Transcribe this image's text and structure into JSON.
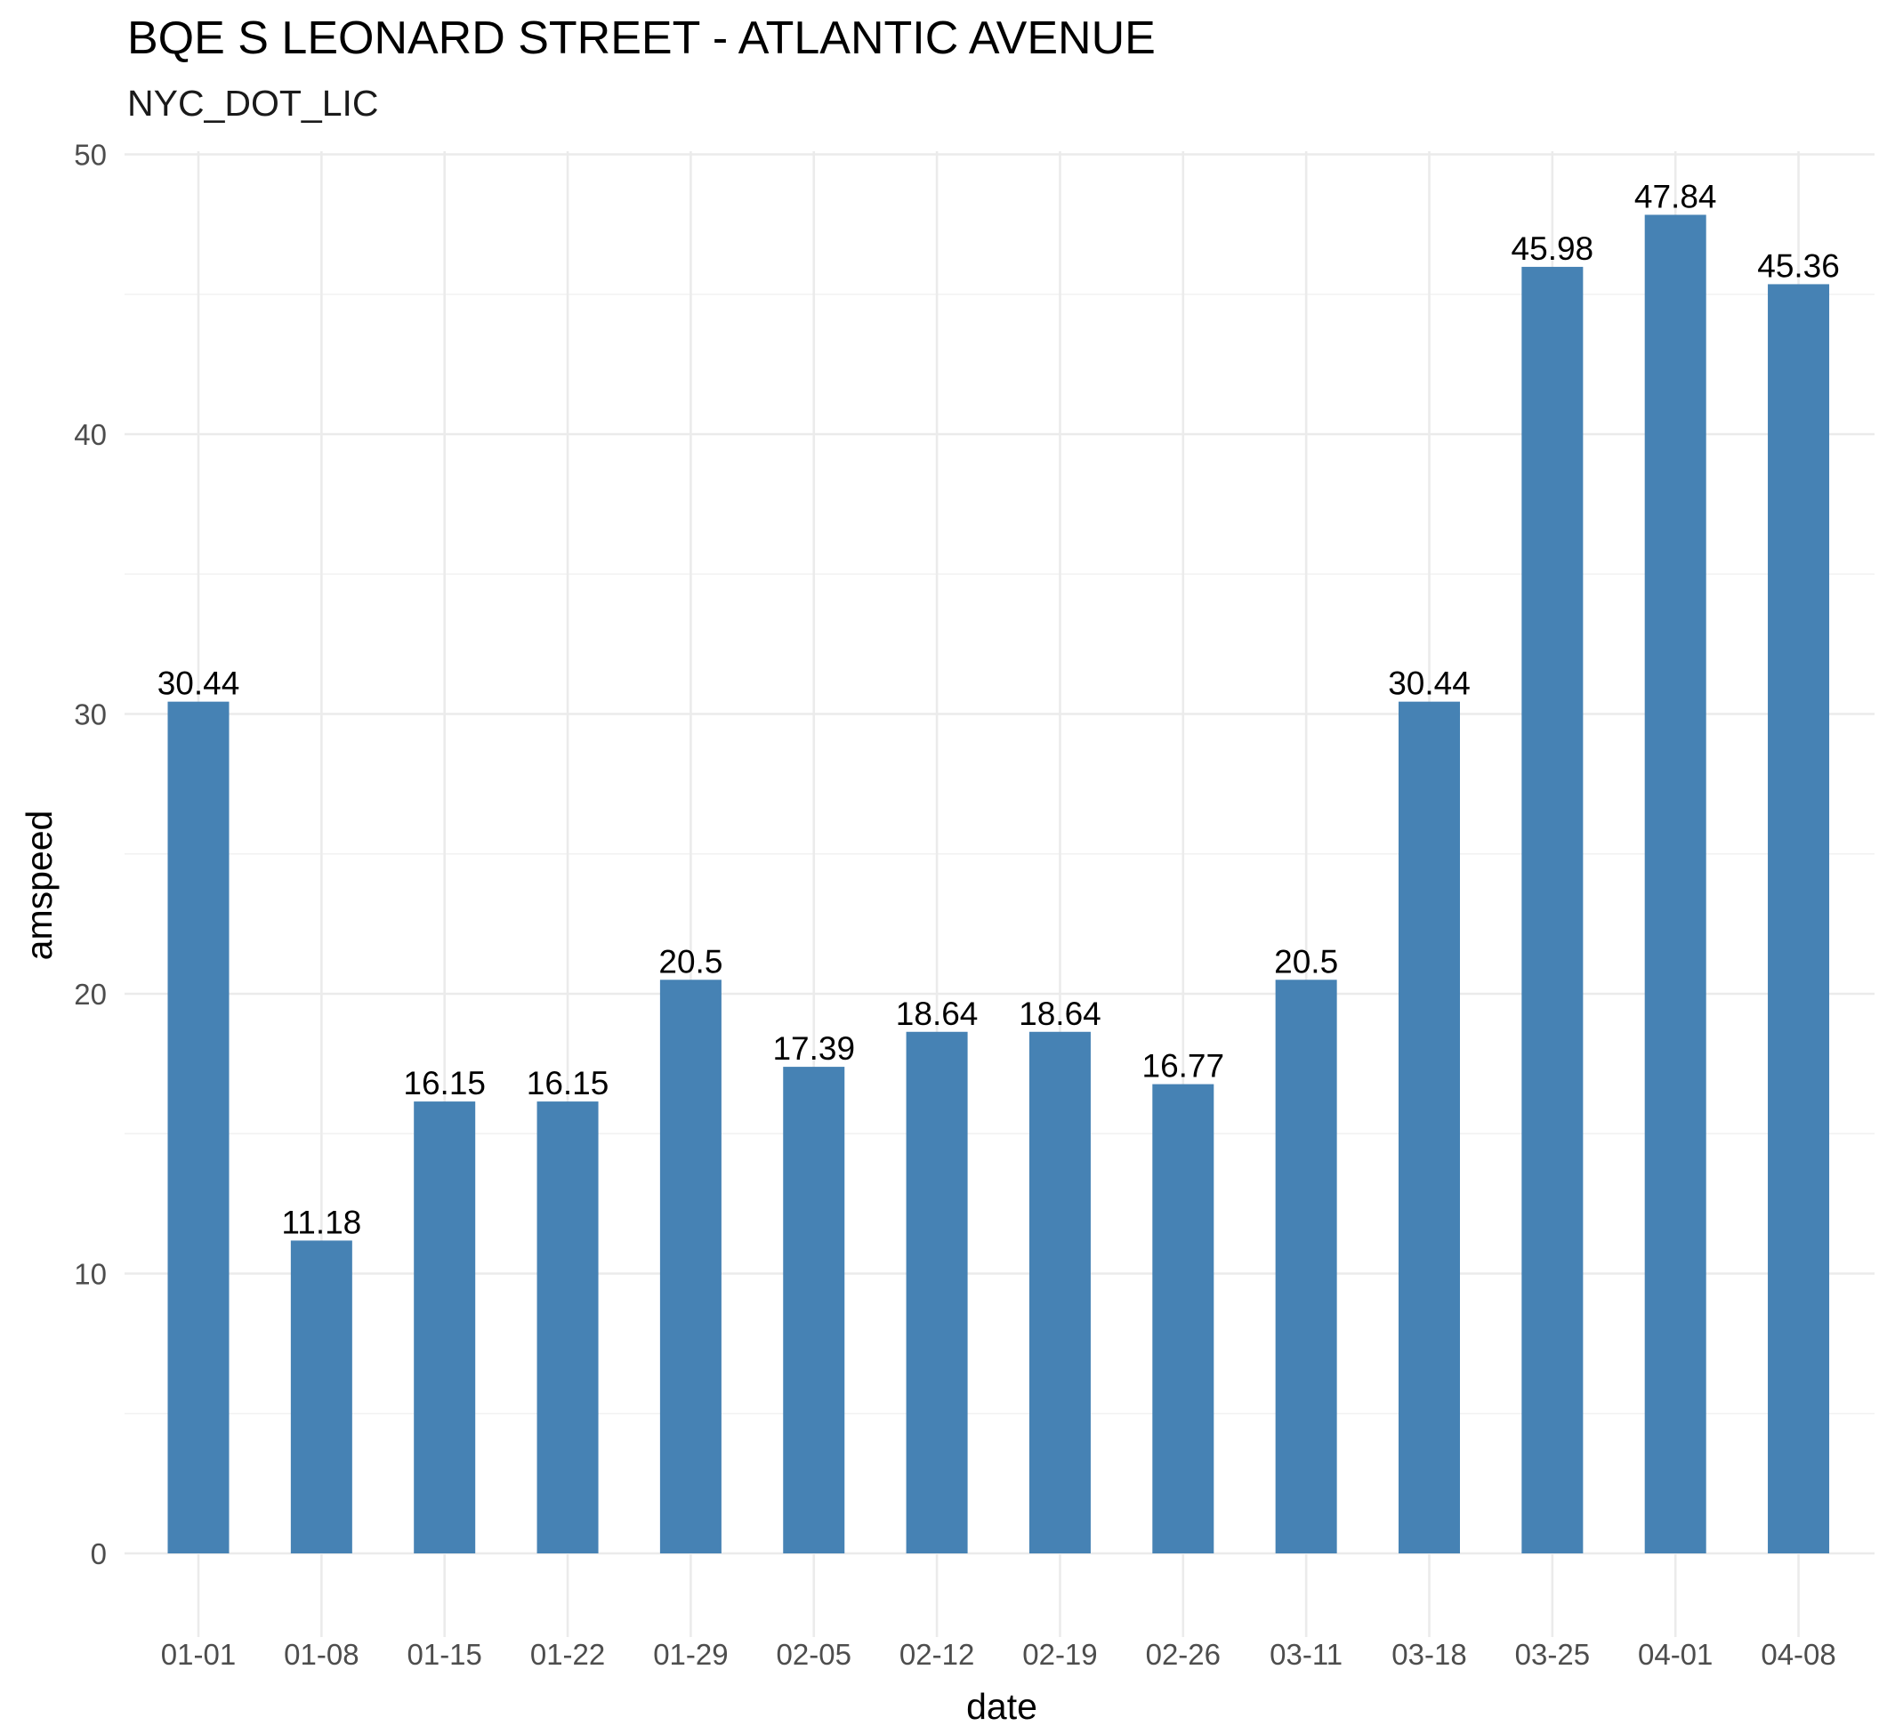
{
  "chart_data": {
    "type": "bar",
    "title": "BQE S LEONARD STREET - ATLANTIC AVENUE",
    "subtitle": "NYC_DOT_LIC",
    "xlabel": "date",
    "ylabel": "amspeed",
    "categories": [
      "01-01",
      "01-08",
      "01-15",
      "01-22",
      "01-29",
      "02-05",
      "02-12",
      "02-19",
      "02-26",
      "03-11",
      "03-18",
      "03-25",
      "04-01",
      "04-08"
    ],
    "values": [
      30.44,
      11.18,
      16.15,
      16.15,
      20.5,
      17.39,
      18.64,
      18.64,
      16.77,
      20.5,
      30.44,
      45.98,
      47.84,
      45.36
    ],
    "value_labels": [
      "30.44",
      "11.18",
      "16.15",
      "16.15",
      "20.5",
      "17.39",
      "18.64",
      "18.64",
      "16.77",
      "20.5",
      "30.44",
      "45.98",
      "47.84",
      "45.36"
    ],
    "ylim": [
      0,
      50
    ],
    "y_ticks": [
      0,
      10,
      20,
      30,
      40,
      50
    ],
    "y_tick_labels": [
      "0",
      "10",
      "20",
      "30",
      "40",
      "50"
    ],
    "grid": true,
    "legend": "none",
    "bar_color": "#4682B4"
  }
}
